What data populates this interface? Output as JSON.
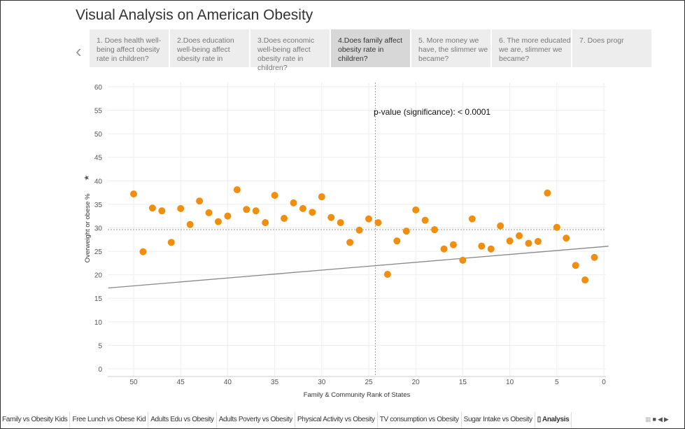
{
  "title": "Visual Analysis on American Obesity",
  "captions": [
    "1. Does health well-being affect obesity rate in children?",
    "2.Does education well-being affect obesity rate in",
    "3.Does economic well-being affect obesity rate in children?",
    "4.Does family affect obesity rate in children?",
    "5. More money we have, the slimmer we became?",
    "6. The more educated we are, slimmer we became?",
    "7. Does progr"
  ],
  "active_caption": 3,
  "tabs": [
    "Family vs Obesity Kids",
    "Free Lunch vs Obese Kid",
    "Adults  Edu vs Obesity",
    "Adults Poverty vs Obesity",
    "Physical Activity vs Obesity",
    "TV consumption vs Obesity",
    "Sugar Intake vs Obesity",
    "Analysis"
  ],
  "active_tab": 7,
  "chart_data": {
    "type": "scatter",
    "xlabel": "Family & Community Rank of States",
    "ylabel": "Overweight or obese %",
    "annotation": "p-value (significance): < 0.0001",
    "xlim": [
      52.7,
      -0.5
    ],
    "x_reversed": true,
    "ylim": [
      0,
      60
    ],
    "xticks": [
      50,
      45,
      40,
      35,
      30,
      25,
      20,
      15,
      10,
      5,
      0
    ],
    "yticks": [
      0,
      5,
      10,
      15,
      20,
      25,
      30,
      35,
      40,
      45,
      50,
      55,
      60
    ],
    "grid": true,
    "color": "#f28e0e",
    "trend_line": {
      "slope": -0.167,
      "intercept": 26.0
    },
    "reference_lines": {
      "x": 24.3,
      "y": 29.6
    },
    "points": [
      [
        50,
        37.2
      ],
      [
        49,
        24.9
      ],
      [
        48,
        34.2
      ],
      [
        47,
        33.6
      ],
      [
        46,
        26.9
      ],
      [
        45,
        34.1
      ],
      [
        44,
        30.7
      ],
      [
        43,
        35.7
      ],
      [
        42,
        33.2
      ],
      [
        41,
        31.3
      ],
      [
        40,
        32.5
      ],
      [
        39,
        38.1
      ],
      [
        38,
        33.9
      ],
      [
        37,
        33.6
      ],
      [
        36,
        31.1
      ],
      [
        35,
        36.9
      ],
      [
        34,
        32.0
      ],
      [
        33,
        35.3
      ],
      [
        32,
        34.1
      ],
      [
        31,
        33.3
      ],
      [
        30,
        36.6
      ],
      [
        29,
        32.2
      ],
      [
        28,
        31.1
      ],
      [
        27,
        26.9
      ],
      [
        26,
        29.5
      ],
      [
        25,
        31.9
      ],
      [
        24,
        31.1
      ],
      [
        23,
        20.1
      ],
      [
        22,
        27.2
      ],
      [
        21,
        29.3
      ],
      [
        20,
        33.8
      ],
      [
        19,
        31.6
      ],
      [
        18,
        29.6
      ],
      [
        17,
        25.5
      ],
      [
        16,
        26.4
      ],
      [
        15,
        23.1
      ],
      [
        14,
        31.9
      ],
      [
        13,
        26.1
      ],
      [
        12,
        25.5
      ],
      [
        11,
        30.4
      ],
      [
        10,
        27.2
      ],
      [
        9,
        28.3
      ],
      [
        8,
        26.7
      ],
      [
        7,
        27.1
      ],
      [
        6,
        37.4
      ],
      [
        5,
        30.1
      ],
      [
        4,
        27.8
      ],
      [
        3,
        22.0
      ],
      [
        2,
        18.9
      ],
      [
        1,
        23.7
      ]
    ]
  }
}
